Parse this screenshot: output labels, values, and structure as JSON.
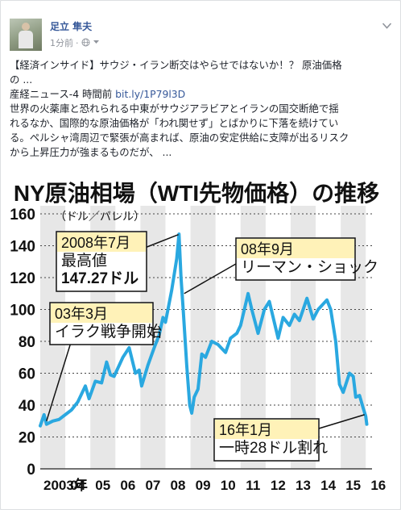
{
  "post": {
    "author": "足立 隼夫",
    "time": "1分前",
    "dot": "·",
    "line1": "【経済インサイド】サウジ・イラン断交はやらせではないか！？ 原油価格",
    "line2": "の ...",
    "source": "産経ニュース-4 時間前",
    "link": "bit.ly/1P79l3D",
    "body1": "世界の火薬庫と恐れられる中東がサウジアラビアとイランの国交断絶で揺",
    "body2": "れるなか、国際的な原油価格が「われ関せず」とばかりに下落を続けてい",
    "body3": "る。ペルシャ湾周辺で緊張が高まれば、原油の安定供給に支障が出るリスク",
    "body4": "から上昇圧力が強まるものだが、 ..."
  },
  "icons": [
    "globe-icon",
    "chevron-down-icon"
  ],
  "colors": {
    "line": "#2aa8e0",
    "callout_bg": "#fff2b8",
    "stripe": "#e7e7e7",
    "name": "#365899"
  },
  "chart_data": {
    "type": "line",
    "title": "NY原油相場（WTI先物価格）の推移",
    "ylabel": "（ドル／バレル）",
    "ylim": [
      0,
      160
    ],
    "yticks": [
      "160",
      "140",
      "120",
      "100",
      "80",
      "60",
      "40",
      "20",
      "0"
    ],
    "xticks": [
      "2003年",
      "04",
      "05",
      "06",
      "07",
      "08",
      "09",
      "10",
      "11",
      "12",
      "13",
      "14",
      "15",
      "16"
    ],
    "series": [
      {
        "values": [
          [
            2003.0,
            27
          ],
          [
            2003.15,
            34
          ],
          [
            2003.25,
            28
          ],
          [
            2003.5,
            30
          ],
          [
            2003.75,
            31
          ],
          [
            2004.0,
            34
          ],
          [
            2004.25,
            37
          ],
          [
            2004.5,
            42
          ],
          [
            2004.8,
            52
          ],
          [
            2004.95,
            44
          ],
          [
            2005.2,
            55
          ],
          [
            2005.45,
            54
          ],
          [
            2005.65,
            67
          ],
          [
            2005.8,
            59
          ],
          [
            2005.95,
            58
          ],
          [
            2006.3,
            70
          ],
          [
            2006.55,
            76
          ],
          [
            2006.8,
            60
          ],
          [
            2006.95,
            62
          ],
          [
            2007.05,
            52
          ],
          [
            2007.3,
            65
          ],
          [
            2007.55,
            76
          ],
          [
            2007.75,
            84
          ],
          [
            2007.9,
            95
          ],
          [
            2008.0,
            92
          ],
          [
            2008.25,
            112
          ],
          [
            2008.45,
            132
          ],
          [
            2008.54,
            147.27
          ],
          [
            2008.62,
            120
          ],
          [
            2008.71,
            100
          ],
          [
            2008.85,
            65
          ],
          [
            2008.97,
            40
          ],
          [
            2009.05,
            35
          ],
          [
            2009.15,
            45
          ],
          [
            2009.3,
            50
          ],
          [
            2009.45,
            72
          ],
          [
            2009.6,
            70
          ],
          [
            2009.85,
            80
          ],
          [
            2010.1,
            78
          ],
          [
            2010.4,
            73
          ],
          [
            2010.6,
            82
          ],
          [
            2010.85,
            85
          ],
          [
            2011.0,
            90
          ],
          [
            2011.3,
            110
          ],
          [
            2011.45,
            100
          ],
          [
            2011.7,
            85
          ],
          [
            2011.95,
            100
          ],
          [
            2012.15,
            105
          ],
          [
            2012.5,
            82
          ],
          [
            2012.7,
            95
          ],
          [
            2012.95,
            90
          ],
          [
            2013.15,
            97
          ],
          [
            2013.35,
            93
          ],
          [
            2013.65,
            107
          ],
          [
            2013.9,
            94
          ],
          [
            2014.1,
            100
          ],
          [
            2014.45,
            106
          ],
          [
            2014.6,
            100
          ],
          [
            2014.8,
            80
          ],
          [
            2014.95,
            53
          ],
          [
            2015.1,
            48
          ],
          [
            2015.35,
            60
          ],
          [
            2015.5,
            58
          ],
          [
            2015.6,
            45
          ],
          [
            2015.75,
            46
          ],
          [
            2015.9,
            38
          ],
          [
            2016.0,
            33
          ],
          [
            2016.04,
            28
          ]
        ]
      }
    ],
    "annotations": [
      {
        "lines": [
          "2008年7月",
          "最高値",
          "147.27ドル"
        ]
      },
      {
        "lines": [
          "08年9月",
          "リーマン・ショック"
        ]
      },
      {
        "lines": [
          "03年3月",
          "イラク戦争開始"
        ]
      },
      {
        "lines": [
          "16年1月",
          "一時28ドル割れ"
        ]
      }
    ]
  }
}
